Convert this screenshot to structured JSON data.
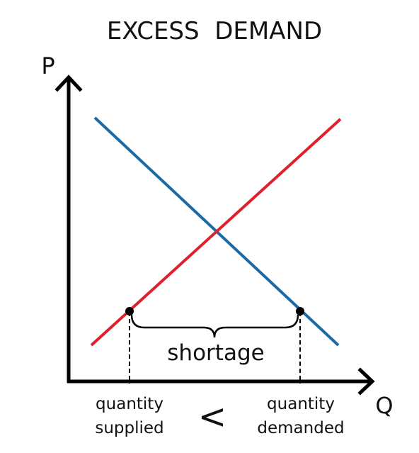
{
  "title": "EXCESS  DEMAND",
  "axes": {
    "y_label": "P",
    "x_label": "Q"
  },
  "curves": {
    "demand_color": "#1a6aa6",
    "supply_color": "#e0202e"
  },
  "gap_label": "shortage",
  "left_point": {
    "line1": "quantity",
    "line2": "supplied"
  },
  "right_point": {
    "line1": "quantity",
    "line2": "demanded"
  },
  "comparison": "<"
}
